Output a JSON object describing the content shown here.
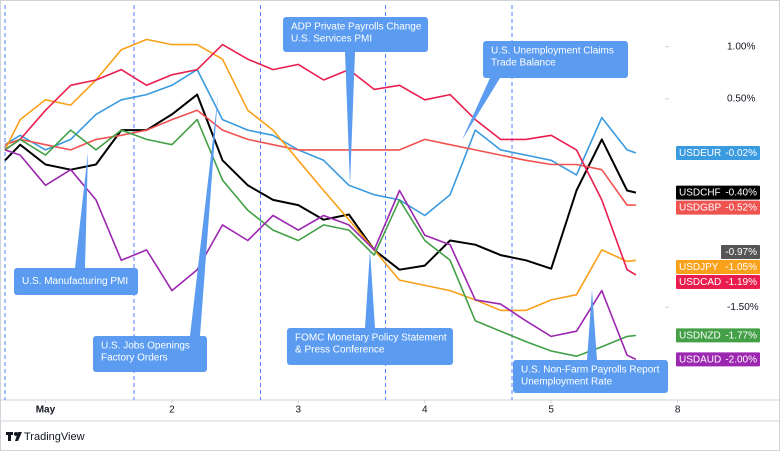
{
  "chart_data": {
    "type": "line",
    "x": [
      -0.32,
      -0.2,
      0,
      0.2,
      0.4,
      0.6,
      0.8,
      1,
      1.2,
      1.4,
      1.6,
      1.8,
      2,
      2.2,
      2.4,
      2.6,
      2.8,
      3,
      3.2,
      3.4,
      3.6,
      3.8,
      4,
      4.2,
      4.4,
      4.6,
      4.67
    ],
    "xlim": [
      -0.32,
      4.9
    ],
    "xticks": [
      {
        "value": 0,
        "label": "May"
      },
      {
        "value": 1,
        "label": "2"
      },
      {
        "value": 2,
        "label": "3"
      },
      {
        "value": 3,
        "label": "4"
      },
      {
        "value": 4,
        "label": "5"
      },
      {
        "value": 5,
        "label": "8"
      }
    ],
    "ylim": [
      -2.39,
      1.4
    ],
    "yticks": [
      {
        "value": 1,
        "label": "1.00%"
      },
      {
        "value": 0.5,
        "label": "0.50%"
      },
      {
        "value": -1.5,
        "label": "-1.50%"
      }
    ],
    "session_lines": [
      -0.32,
      0.7,
      1.7,
      2.69,
      3.69
    ],
    "series": [
      {
        "name": "USDEUR",
        "color": "#3a9be0",
        "label": "-0.02%",
        "values": [
          0.06,
          0.15,
          0.01,
          0.11,
          0.35,
          0.49,
          0.54,
          0.63,
          0.78,
          0.3,
          0.2,
          0.15,
          0.01,
          -0.09,
          -0.33,
          -0.42,
          -0.47,
          -0.62,
          -0.42,
          0.2,
          0.01,
          -0.04,
          -0.09,
          -0.23,
          0.32,
          0.01,
          -0.02
        ]
      },
      {
        "name": "USDCHF",
        "color": "#000000",
        "label": "-0.40%",
        "values": [
          -0.09,
          0.06,
          -0.13,
          -0.18,
          -0.13,
          0.2,
          0.2,
          0.35,
          0.54,
          -0.09,
          -0.33,
          -0.47,
          -0.52,
          -0.66,
          -0.61,
          -0.95,
          -1.14,
          -1.1,
          -0.86,
          -0.9,
          -1.0,
          -1.05,
          -1.13,
          -0.38,
          0.11,
          -0.38,
          -0.4
        ]
      },
      {
        "name": "USDGBP",
        "color": "#ef5350",
        "label": "-0.52%",
        "values": [
          0.06,
          0.11,
          0.06,
          0.01,
          0.11,
          0.15,
          0.2,
          0.3,
          0.39,
          0.2,
          0.11,
          0.06,
          0.01,
          0.01,
          0.01,
          0.01,
          0.01,
          0.11,
          0.06,
          0.01,
          -0.04,
          -0.09,
          -0.13,
          -0.13,
          -0.18,
          -0.52,
          -0.52
        ]
      },
      {
        "name": "USDJPY",
        "color": "#f9a11b",
        "label": "-1.05%",
        "values": [
          0.01,
          0.3,
          0.49,
          0.44,
          0.68,
          0.97,
          1.07,
          1.02,
          1.02,
          0.88,
          0.39,
          0.2,
          -0.09,
          -0.38,
          -0.66,
          -0.95,
          -1.24,
          -1.29,
          -1.34,
          -1.43,
          -1.53,
          -1.53,
          -1.43,
          -1.38,
          -0.95,
          -1.06,
          -1.05
        ]
      },
      {
        "name": "USDCAD",
        "color": "#e91e4f",
        "label": "-1.19%",
        "values": [
          0.01,
          0.11,
          0.39,
          0.63,
          0.68,
          0.78,
          0.63,
          0.73,
          0.78,
          1.02,
          0.88,
          0.78,
          0.83,
          0.68,
          0.78,
          0.59,
          0.63,
          0.49,
          0.54,
          0.3,
          0.11,
          0.11,
          0.15,
          0.01,
          -0.47,
          -1.14,
          -1.19
        ]
      },
      {
        "name": "USDNZD",
        "color": "#43a047",
        "label": "-1.77%",
        "values": [
          0.01,
          0.11,
          -0.04,
          0.2,
          0.01,
          0.2,
          0.11,
          0.06,
          0.3,
          -0.28,
          -0.57,
          -0.76,
          -0.86,
          -0.71,
          -0.76,
          -1.0,
          -0.47,
          -0.86,
          -1.05,
          -1.63,
          -1.73,
          -1.83,
          -1.92,
          -1.97,
          -1.88,
          -1.78,
          -1.77
        ]
      },
      {
        "name": "USDAUD",
        "color": "#9c27b0",
        "label": "-2.00%",
        "values": [
          0.01,
          -0.04,
          -0.33,
          -0.18,
          -0.47,
          -1.05,
          -0.95,
          -1.34,
          -1.14,
          -0.71,
          -0.86,
          -0.62,
          -0.76,
          -0.62,
          -0.71,
          -0.95,
          -0.38,
          -0.81,
          -0.9,
          -1.43,
          -1.47,
          -1.63,
          -1.78,
          -1.73,
          -1.34,
          -1.96,
          -2.0
        ]
      }
    ],
    "markers": [
      {
        "value": -0.97,
        "label": "-0.97%"
      }
    ],
    "annotations": [
      {
        "lines": [
          "U.S. Manufacturing PMI"
        ]
      },
      {
        "lines": [
          "U.S. Jobs Openings",
          "Factory Orders"
        ]
      },
      {
        "lines": [
          "ADP Private Payrolls Change",
          "U.S. Services PMI"
        ]
      },
      {
        "lines": [
          "U.S. Unemployment Claims",
          "Trade Balance"
        ]
      },
      {
        "lines": [
          "FOMC Monetary Policy Statement",
          "& Press Conference"
        ]
      },
      {
        "lines": [
          "U.S. Non-Farm Payrolls Report",
          "Unemployment Rate"
        ]
      }
    ],
    "brand": "TradingView"
  }
}
